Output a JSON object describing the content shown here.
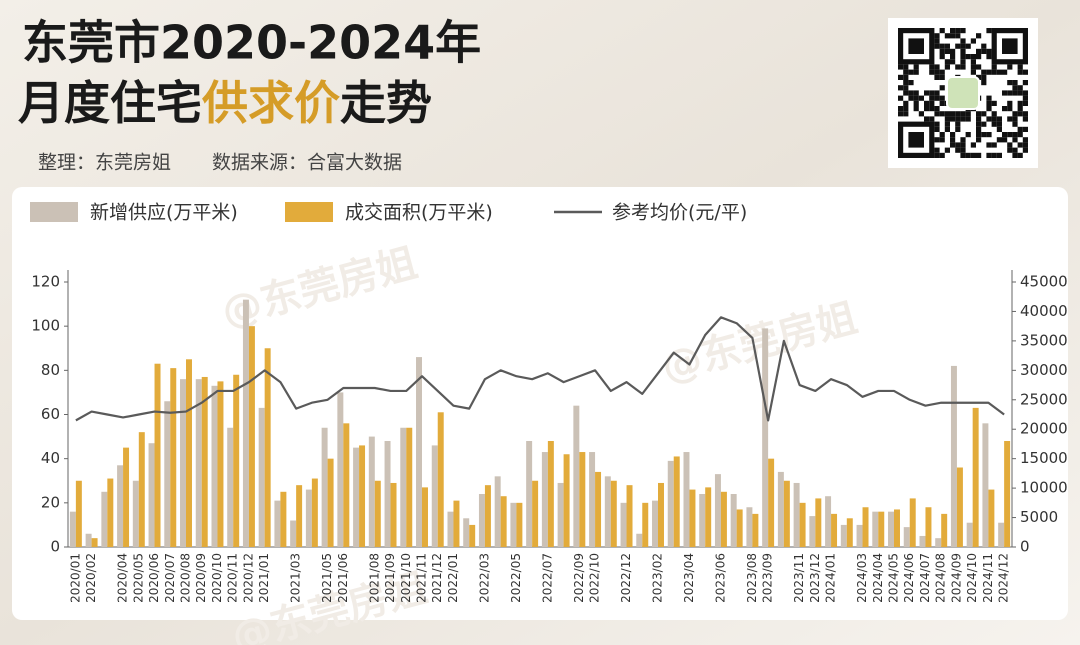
{
  "chart_data": {
    "type": "bar_line",
    "title": "东莞市2020-2024年",
    "title2": [
      "月度住宅",
      "供求价",
      "走势"
    ],
    "credits": [
      "整理：东莞房姐",
      "数据来源：合富大数据"
    ],
    "watermark": "@东莞房姐",
    "categories": [
      "2020/01",
      "2020/02",
      null,
      "2020/04",
      "2020/05",
      "2020/06",
      "2020/07",
      "2020/08",
      "2020/09",
      "2020/10",
      "2020/11",
      "2020/12",
      "2021/01",
      null,
      "2021/03",
      null,
      "2021/05",
      "2021/06",
      null,
      "2021/08",
      "2021/09",
      "2021/10",
      "2021/11",
      "2021/12",
      "2022/01",
      null,
      "2022/03",
      null,
      "2022/05",
      null,
      "2022/07",
      null,
      "2022/09",
      "2022/10",
      null,
      "2022/12",
      null,
      "2023/02",
      null,
      "2023/04",
      null,
      "2023/06",
      null,
      "2023/08",
      "2023/09",
      null,
      "2023/11",
      "2023/12",
      "2024/01",
      null,
      "2024/03",
      "2024/04",
      "2024/05",
      "2024/06",
      "2024/07",
      "2024/08",
      "2024/09",
      "2024/10",
      "2024/11",
      "2024/12"
    ],
    "series": [
      {
        "name": "新增供应(万平米)",
        "color": "#cbc1b6",
        "values": [
          16,
          6,
          25,
          37,
          30,
          47,
          66,
          76,
          76,
          73,
          54,
          112,
          63,
          21,
          12,
          26,
          54,
          70,
          45,
          50,
          48,
          54,
          86,
          46,
          16,
          13,
          24,
          32,
          20,
          48,
          43,
          29,
          64,
          43,
          32,
          20,
          6,
          21,
          39,
          43,
          24,
          33,
          24,
          18,
          99,
          34,
          29,
          14,
          23,
          10,
          10,
          16,
          16,
          9,
          5,
          4,
          82,
          11,
          56,
          11
        ]
      },
      {
        "name": "成交面积(万平米)",
        "color": "#e2ab3b",
        "values": [
          30,
          4,
          31,
          45,
          52,
          83,
          81,
          85,
          77,
          75,
          78,
          100,
          90,
          25,
          28,
          31,
          40,
          56,
          46,
          30,
          29,
          54,
          27,
          61,
          21,
          10,
          28,
          23,
          20,
          30,
          48,
          42,
          43,
          34,
          30,
          28,
          20,
          29,
          41,
          26,
          27,
          25,
          17,
          15,
          40,
          30,
          20,
          22,
          15,
          13,
          18,
          16,
          17,
          22,
          18,
          15,
          36,
          63,
          26,
          48
        ]
      },
      {
        "name": "参考均价(元/平)",
        "color": "#5a5a5a",
        "axis": "y2",
        "values": [
          21500,
          23000,
          22500,
          22000,
          22500,
          23000,
          22800,
          23000,
          24500,
          26500,
          26500,
          28000,
          30000,
          28000,
          23500,
          24500,
          25000,
          27000,
          27000,
          27000,
          26500,
          26500,
          29000,
          26500,
          24000,
          23500,
          28500,
          30000,
          29000,
          28500,
          29500,
          28000,
          29000,
          30000,
          26500,
          28000,
          26000,
          29500,
          33000,
          31000,
          36000,
          39000,
          38000,
          35500,
          21500,
          35000,
          27500,
          26500,
          28500,
          27500,
          25500,
          26500,
          26500,
          25000,
          24000,
          24500,
          24500,
          24500,
          24500,
          22500
        ]
      }
    ],
    "ylim": [
      0,
      120
    ],
    "yticks": [
      0,
      20,
      40,
      60,
      80,
      100,
      120
    ],
    "y2lim": [
      0,
      45000
    ],
    "y2ticks": [
      0,
      5000,
      10000,
      15000,
      20000,
      25000,
      30000,
      35000,
      40000,
      45000
    ]
  }
}
